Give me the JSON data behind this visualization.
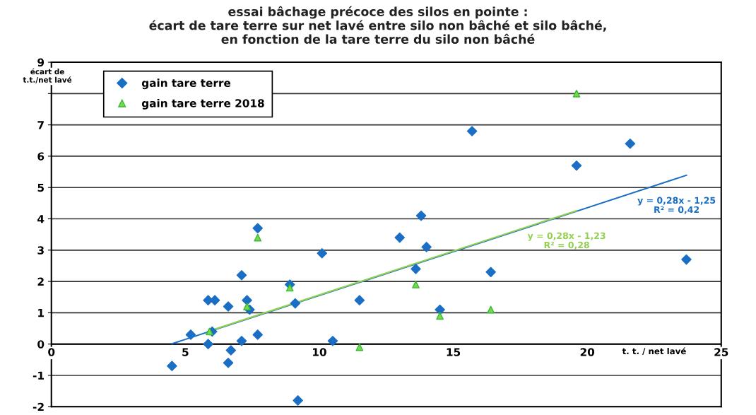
{
  "chart_data": {
    "type": "scatter",
    "title": "essai bâchage précoce des silos en pointe :\nécart de tare terre sur net lavé entre silo non bâché et silo bâché,\nen fonction de la tare terre du silo non bâché",
    "xlabel": "t. t. / net lavé",
    "ylabel": "écart de\nt.t./net lavé",
    "xlim": [
      0,
      25
    ],
    "ylim": [
      -2,
      9
    ],
    "xticks": [
      0,
      5,
      10,
      15,
      20,
      25
    ],
    "yticks": [
      -2,
      -1,
      0,
      1,
      2,
      3,
      4,
      5,
      6,
      7,
      {
        "value": 8,
        "label": null
      },
      9
    ],
    "grid": "y",
    "legend": "top left",
    "series": [
      {
        "name": "gain tare terre",
        "color": "#1a6fc4",
        "marker": "diamond",
        "x": [
          4.5,
          5.2,
          5.85,
          6.1,
          6.6,
          5.85,
          6.0,
          6.7,
          6.6,
          7.1,
          7.3,
          7.4,
          7.1,
          7.7,
          7.7,
          8.9,
          9.1,
          9.2,
          10.1,
          10.5,
          11.5,
          13.0,
          13.6,
          13.8,
          14.0,
          14.5,
          15.7,
          16.4,
          19.6,
          21.6,
          23.7
        ],
        "values": [
          -0.7,
          0.3,
          1.4,
          1.4,
          1.2,
          0.0,
          0.4,
          -0.2,
          -0.6,
          2.2,
          1.4,
          1.1,
          0.1,
          3.7,
          0.3,
          1.9,
          1.3,
          -1.8,
          2.9,
          0.1,
          1.4,
          3.4,
          2.4,
          4.1,
          3.1,
          1.1,
          6.8,
          2.3,
          5.7,
          6.4,
          2.7
        ]
      },
      {
        "name": "gain tare terre 2018",
        "color": "#7dd64f",
        "marker": "triangle",
        "x": [
          5.9,
          7.3,
          7.7,
          8.9,
          11.5,
          13.6,
          14.5,
          16.4,
          19.6
        ],
        "values": [
          0.4,
          1.2,
          3.4,
          1.8,
          -0.1,
          1.9,
          0.9,
          1.1,
          8.0
        ]
      },
      {
        "type": "line",
        "color": "#1a6fc4",
        "x": [
          4.5,
          23.7
        ],
        "values": [
          0.01,
          5.39
        ]
      },
      {
        "type": "line",
        "color": "#92d050",
        "x": [
          5.9,
          19.6
        ],
        "values": [
          0.42,
          4.26
        ]
      }
    ],
    "annotations": [
      "y = 0,28x - 1,25\nR² = 0,42",
      "y = 0,28x - 1,23\nR² = 0,28"
    ]
  }
}
